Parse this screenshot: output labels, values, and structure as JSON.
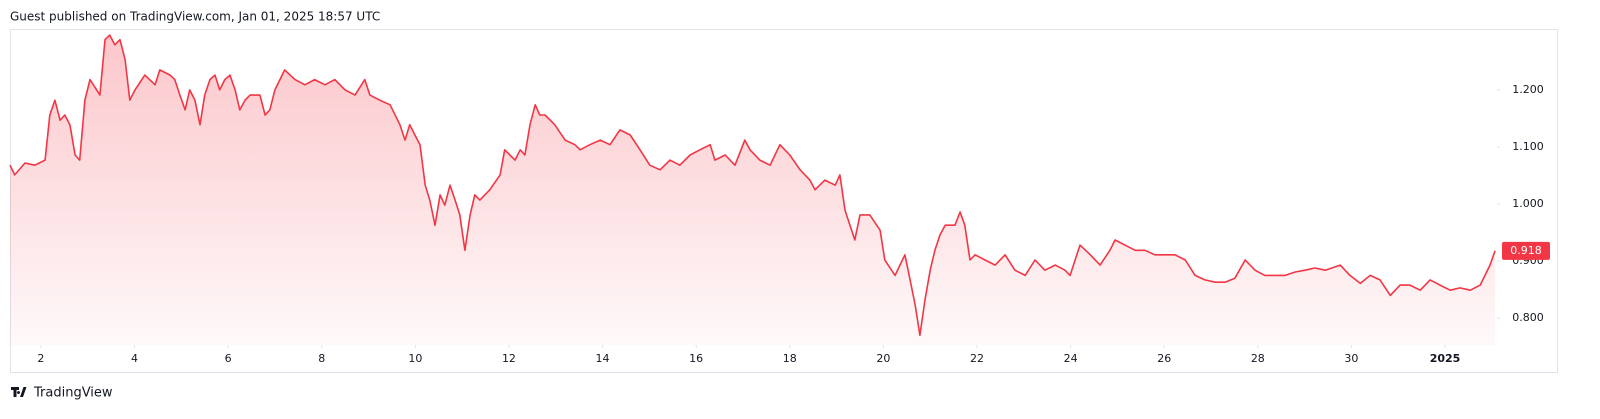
{
  "header": "Guest published on TradingView.com, Jan 01, 2025 18:57 UTC",
  "footer": "TradingView",
  "chart_data": {
    "type": "area",
    "color": "#f23645",
    "x": [
      1.34,
      1.44,
      1.66,
      1.87,
      2.09,
      2.19,
      2.3,
      2.41,
      2.51,
      2.62,
      2.73,
      2.83,
      2.94,
      3.05,
      3.26,
      3.37,
      3.47,
      3.58,
      3.69,
      3.8,
      3.9,
      4.01,
      4.22,
      4.44,
      4.54,
      4.76,
      4.86,
      4.97,
      5.08,
      5.18,
      5.29,
      5.4,
      5.5,
      5.61,
      5.72,
      5.82,
      5.93,
      6.04,
      6.15,
      6.25,
      6.36,
      6.47,
      6.68,
      6.79,
      6.89,
      7.0,
      7.21,
      7.43,
      7.64,
      7.85,
      8.07,
      8.28,
      8.5,
      8.71,
      8.92,
      9.03,
      9.24,
      9.46,
      9.67,
      9.78,
      9.88,
      9.99,
      10.1,
      10.21,
      10.31,
      10.42,
      10.53,
      10.63,
      10.74,
      10.85,
      10.95,
      11.06,
      11.17,
      11.27,
      11.38,
      11.59,
      11.81,
      11.91,
      12.02,
      12.13,
      12.24,
      12.34,
      12.45,
      12.56,
      12.66,
      12.77,
      12.98,
      13.2,
      13.41,
      13.52,
      13.73,
      13.95,
      14.16,
      14.37,
      14.59,
      14.8,
      15.01,
      15.23,
      15.44,
      15.65,
      15.87,
      16.08,
      16.3,
      16.4,
      16.62,
      16.83,
      17.04,
      17.15,
      17.36,
      17.58,
      17.79,
      18.0,
      18.22,
      18.43,
      18.54,
      18.75,
      18.97,
      19.07,
      19.18,
      19.39,
      19.5,
      19.71,
      19.93,
      20.03,
      20.25,
      20.46,
      20.57,
      20.68,
      20.78,
      20.89,
      21.0,
      21.1,
      21.21,
      21.32,
      21.53,
      21.64,
      21.74,
      21.85,
      21.96,
      22.17,
      22.39,
      22.6,
      22.81,
      23.03,
      23.24,
      23.45,
      23.67,
      23.88,
      23.99,
      24.2,
      24.42,
      24.63,
      24.84,
      24.95,
      25.16,
      25.38,
      25.59,
      25.8,
      26.02,
      26.23,
      26.45,
      26.66,
      26.87,
      27.09,
      27.3,
      27.51,
      27.73,
      27.94,
      28.15,
      28.37,
      28.58,
      28.8,
      29.01,
      29.22,
      29.44,
      29.76,
      29.97,
      30.19,
      30.4,
      30.61,
      30.83,
      31.04,
      31.25,
      31.47,
      31.68,
      31.89,
      32.11,
      32.32,
      32.54,
      32.75,
      32.96,
      33.07
    ],
    "values": [
      1.068,
      1.051,
      1.072,
      1.068,
      1.077,
      1.156,
      1.182,
      1.147,
      1.156,
      1.139,
      1.086,
      1.077,
      1.182,
      1.218,
      1.191,
      1.288,
      1.296,
      1.279,
      1.288,
      1.253,
      1.182,
      1.2,
      1.226,
      1.209,
      1.235,
      1.226,
      1.218,
      1.191,
      1.165,
      1.2,
      1.182,
      1.139,
      1.191,
      1.218,
      1.226,
      1.2,
      1.218,
      1.226,
      1.2,
      1.165,
      1.182,
      1.191,
      1.191,
      1.156,
      1.165,
      1.2,
      1.235,
      1.218,
      1.209,
      1.218,
      1.209,
      1.218,
      1.2,
      1.191,
      1.218,
      1.191,
      1.182,
      1.174,
      1.139,
      1.112,
      1.139,
      1.121,
      1.104,
      1.033,
      1.007,
      0.963,
      1.016,
      0.998,
      1.033,
      1.007,
      0.981,
      0.919,
      0.981,
      1.016,
      1.007,
      1.025,
      1.051,
      1.095,
      1.086,
      1.077,
      1.095,
      1.086,
      1.139,
      1.174,
      1.156,
      1.156,
      1.139,
      1.112,
      1.104,
      1.095,
      1.104,
      1.112,
      1.104,
      1.13,
      1.121,
      1.095,
      1.068,
      1.06,
      1.077,
      1.068,
      1.086,
      1.095,
      1.104,
      1.077,
      1.086,
      1.068,
      1.112,
      1.095,
      1.077,
      1.068,
      1.104,
      1.086,
      1.06,
      1.042,
      1.025,
      1.042,
      1.033,
      1.051,
      0.989,
      0.937,
      0.981,
      0.981,
      0.954,
      0.902,
      0.875,
      0.911,
      0.867,
      0.823,
      0.77,
      0.832,
      0.884,
      0.919,
      0.946,
      0.963,
      0.963,
      0.986,
      0.963,
      0.902,
      0.911,
      0.902,
      0.893,
      0.911,
      0.884,
      0.875,
      0.902,
      0.884,
      0.893,
      0.884,
      0.875,
      0.928,
      0.911,
      0.893,
      0.919,
      0.937,
      0.928,
      0.919,
      0.919,
      0.911,
      0.911,
      0.911,
      0.902,
      0.875,
      0.867,
      0.863,
      0.863,
      0.87,
      0.902,
      0.884,
      0.875,
      0.875,
      0.875,
      0.881,
      0.884,
      0.888,
      0.884,
      0.893,
      0.875,
      0.861,
      0.875,
      0.867,
      0.84,
      0.858,
      0.858,
      0.849,
      0.867,
      0.858,
      0.849,
      0.853,
      0.849,
      0.858,
      0.893,
      0.918
    ],
    "last_price": 0.918,
    "xlim": [
      1.34,
      33.11
    ],
    "xticks": [
      2,
      4,
      6,
      8,
      10,
      12,
      14,
      16,
      18,
      20,
      22,
      24,
      26,
      28,
      30,
      {
        "value": 32,
        "label": "2025"
      }
    ],
    "ylim": [
      0.753,
      1.305
    ],
    "yticks": [
      {
        "value": 0.8,
        "label": "0.800"
      },
      {
        "value": 0.9,
        "label": "0.900"
      },
      {
        "value": 1.0,
        "label": "1.000"
      },
      {
        "value": 1.1,
        "label": "1.100"
      },
      {
        "value": 1.2,
        "label": "1.200"
      }
    ],
    "grid": false
  }
}
